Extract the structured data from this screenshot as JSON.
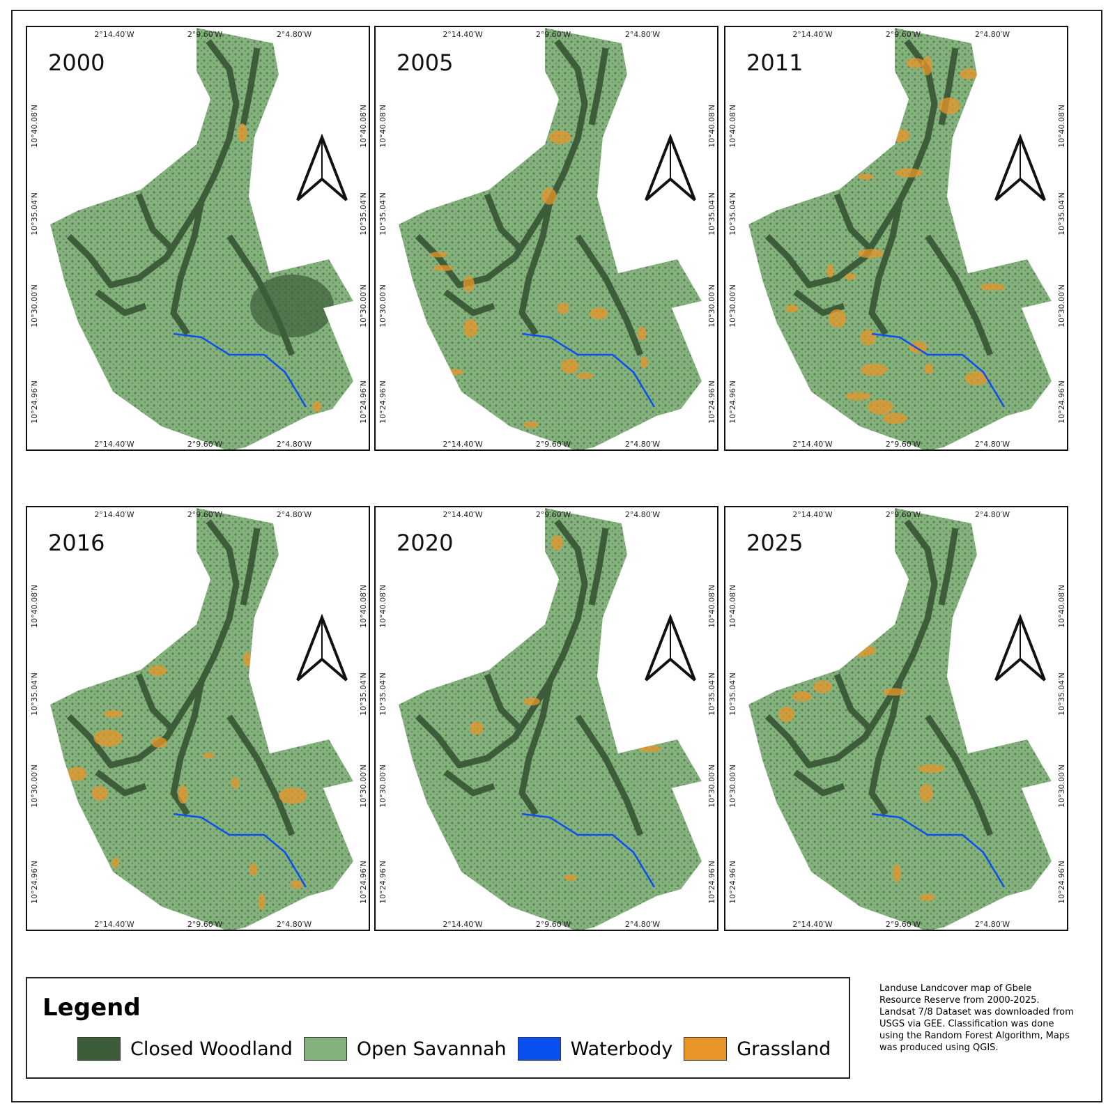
{
  "panels": [
    {
      "year": "2000"
    },
    {
      "year": "2005"
    },
    {
      "year": "2011"
    },
    {
      "year": "2016"
    },
    {
      "year": "2020"
    },
    {
      "year": "2025"
    }
  ],
  "graticule": {
    "longitudes": [
      "2°14.40′W",
      "2°9.60′W",
      "2°4.80′W"
    ],
    "latitudes": [
      "10°40.08′N",
      "10°35.04′N",
      "10°30.00′N",
      "10°24.96′N"
    ]
  },
  "legend": {
    "title": "Legend",
    "items": [
      {
        "label": "Closed Woodland",
        "color": "#3d5c3a"
      },
      {
        "label": "Open Savannah",
        "color": "#84b27c"
      },
      {
        "label": "Waterbody",
        "color": "#0a4ff0"
      },
      {
        "label": "Grassland",
        "color": "#e8962a"
      }
    ]
  },
  "note": "Landuse Landcover map of Gbele Resource Reserve from 2000-2025. Landsat 7/8 Dataset was downloaded from USGS via GEE. Classification was done using the Random Forest Algorithm, Maps was produced using QGIS."
}
